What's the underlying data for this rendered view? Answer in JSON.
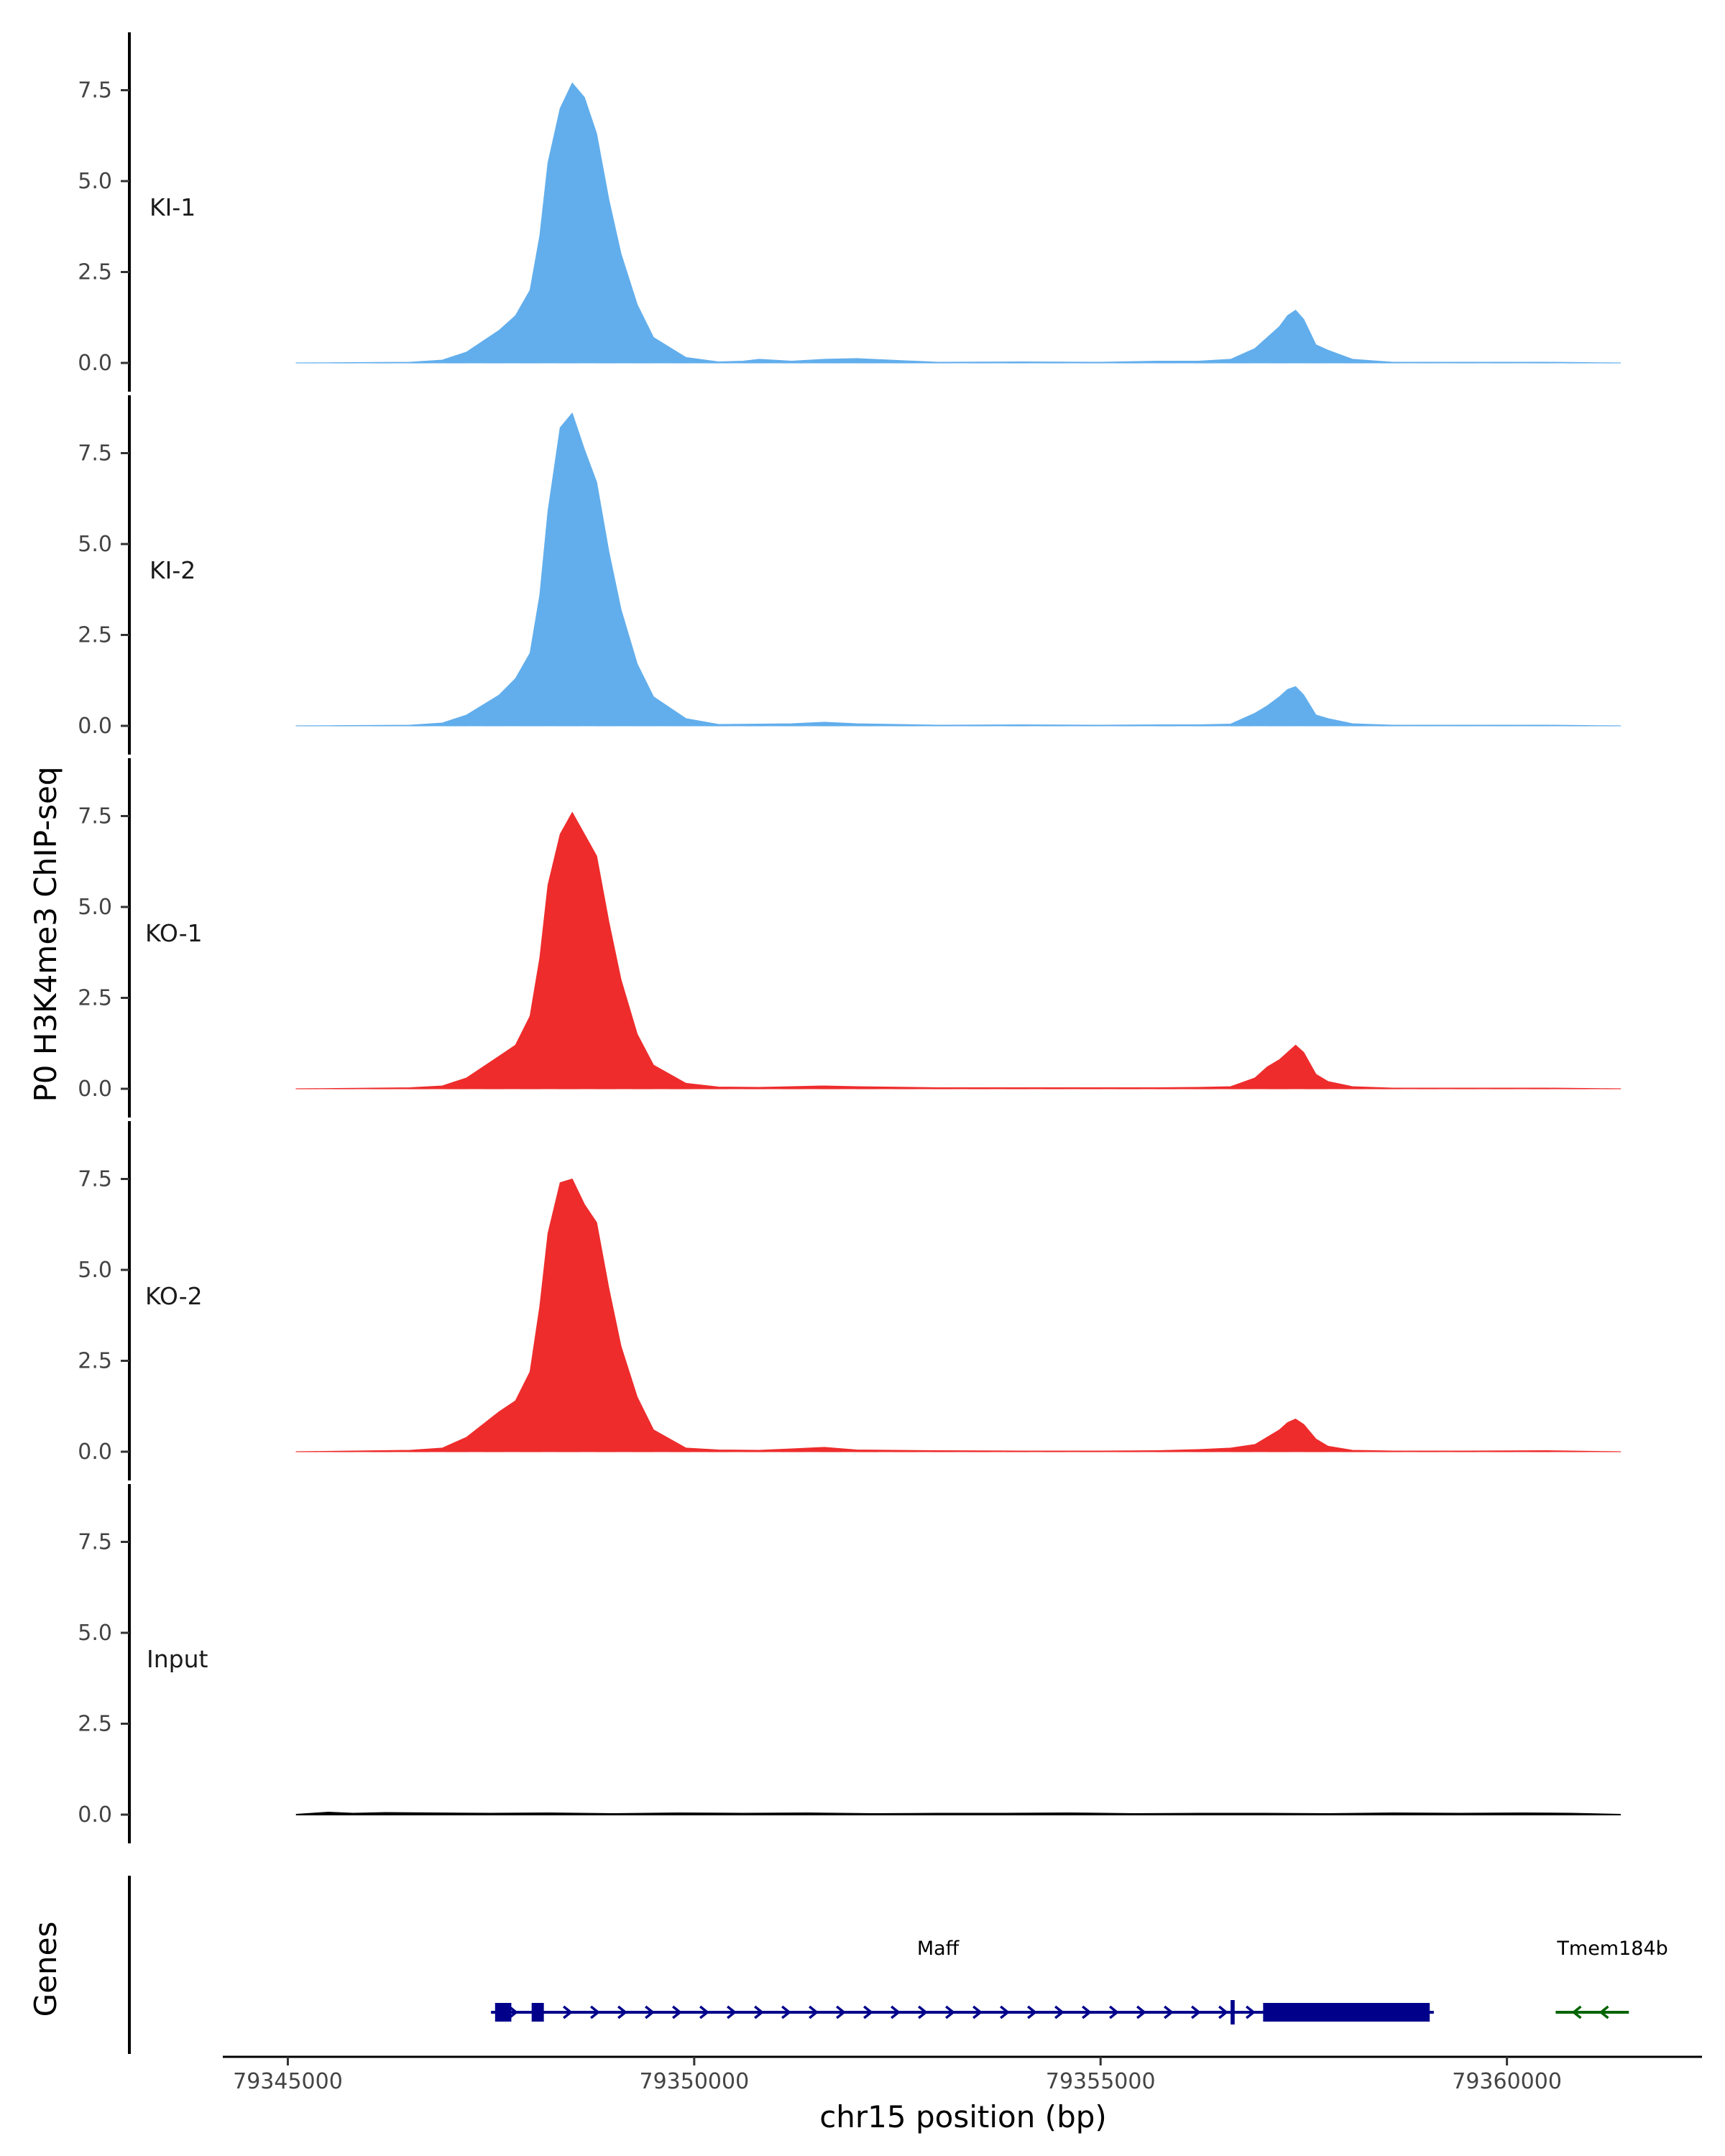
{
  "chart_data": {
    "type": "area",
    "ylabel": "P0 H3K4me3 ChIP-seq",
    "xlabel": "chr15 position (bp)",
    "genes_label": "Genes",
    "xlim": [
      79344200,
      79362400
    ],
    "ylim": [
      0,
      9
    ],
    "y_ticks": [
      0,
      2.5,
      5,
      7.5
    ],
    "y_tick_labels": [
      "0.0",
      "2.5",
      "5.0",
      "7.5"
    ],
    "x_ticks": [
      79345000,
      79350000,
      79355000,
      79360000
    ],
    "x_tick_labels": [
      "79345000",
      "79350000",
      "79355000",
      "79360000"
    ],
    "track_range": [
      79345100,
      79361400
    ],
    "grid": false,
    "colors": {
      "KI": "#62aeec",
      "KO": "#ee2c2c",
      "Input": "#000000",
      "Maff": "#00008b",
      "Tmem184b": "#006400"
    },
    "tracks": [
      {
        "name": "KI-1",
        "color": "#62aeec",
        "label_offset_x": 0,
        "x": [
          79345100,
          79346500,
          79346900,
          79347200,
          79347600,
          79347800,
          79347980,
          79348100,
          79348200,
          79348350,
          79348500,
          79348650,
          79348800,
          79348950,
          79349100,
          79349300,
          79349500,
          79349900,
          79350300,
          79350600,
          79350800,
          79351200,
          79351600,
          79352000,
          79353000,
          79354000,
          79355000,
          79355700,
          79356200,
          79356600,
          79356900,
          79357050,
          79357200,
          79357300,
          79357400,
          79357500,
          79357650,
          79357800,
          79358100,
          79358600,
          79359500,
          79360500,
          79361400
        ],
        "values": [
          0,
          0.02,
          0.08,
          0.3,
          0.9,
          1.3,
          2.0,
          3.5,
          5.5,
          7.0,
          7.7,
          7.3,
          6.3,
          4.5,
          3.0,
          1.6,
          0.7,
          0.15,
          0.03,
          0.05,
          0.1,
          0.05,
          0.1,
          0.12,
          0.02,
          0.03,
          0.02,
          0.05,
          0.05,
          0.1,
          0.4,
          0.7,
          1.0,
          1.3,
          1.45,
          1.2,
          0.5,
          0.35,
          0.1,
          0.02,
          0.02,
          0.02,
          0
        ]
      },
      {
        "name": "KI-2",
        "color": "#62aeec",
        "label_offset_x": 0,
        "x": [
          79345100,
          79346500,
          79346900,
          79347200,
          79347600,
          79347800,
          79347980,
          79348100,
          79348200,
          79348350,
          79348500,
          79348650,
          79348800,
          79348950,
          79349100,
          79349300,
          79349500,
          79349900,
          79350300,
          79350800,
          79351200,
          79351600,
          79352000,
          79353000,
          79354000,
          79355000,
          79355700,
          79356200,
          79356600,
          79356900,
          79357050,
          79357200,
          79357300,
          79357400,
          79357500,
          79357650,
          79357800,
          79358100,
          79358600,
          79359500,
          79360500,
          79361400
        ],
        "values": [
          0,
          0.02,
          0.08,
          0.3,
          0.85,
          1.3,
          2.0,
          3.6,
          5.9,
          8.2,
          8.6,
          7.6,
          6.7,
          4.8,
          3.2,
          1.7,
          0.8,
          0.2,
          0.04,
          0.05,
          0.06,
          0.1,
          0.06,
          0.02,
          0.03,
          0.02,
          0.03,
          0.03,
          0.05,
          0.35,
          0.55,
          0.8,
          1.0,
          1.08,
          0.85,
          0.3,
          0.2,
          0.06,
          0.02,
          0.02,
          0.02,
          0
        ]
      },
      {
        "name": "KO-1",
        "color": "#ee2c2c",
        "label_offset_x": -6,
        "x": [
          79345100,
          79346500,
          79346900,
          79347200,
          79347600,
          79347800,
          79347980,
          79348100,
          79348200,
          79348350,
          79348500,
          79348650,
          79348800,
          79348950,
          79349100,
          79349300,
          79349500,
          79349900,
          79350300,
          79350800,
          79351200,
          79351600,
          79352000,
          79353000,
          79354000,
          79355000,
          79355700,
          79356200,
          79356600,
          79356900,
          79357050,
          79357200,
          79357300,
          79357400,
          79357500,
          79357650,
          79357800,
          79358100,
          79358600,
          79359500,
          79360500,
          79361400
        ],
        "values": [
          0,
          0.03,
          0.08,
          0.3,
          0.9,
          1.2,
          2.0,
          3.6,
          5.6,
          7.0,
          7.6,
          7.0,
          6.4,
          4.6,
          3.0,
          1.5,
          0.65,
          0.15,
          0.05,
          0.04,
          0.06,
          0.08,
          0.06,
          0.03,
          0.03,
          0.03,
          0.03,
          0.04,
          0.06,
          0.3,
          0.6,
          0.8,
          1.0,
          1.2,
          1.0,
          0.4,
          0.2,
          0.06,
          0.02,
          0.02,
          0.02,
          0
        ]
      },
      {
        "name": "KO-2",
        "color": "#ee2c2c",
        "label_offset_x": -6,
        "x": [
          79345100,
          79346500,
          79346900,
          79347200,
          79347600,
          79347800,
          79347980,
          79348100,
          79348200,
          79348350,
          79348500,
          79348650,
          79348800,
          79348950,
          79349100,
          79349300,
          79349500,
          79349900,
          79350300,
          79350800,
          79351200,
          79351600,
          79352000,
          79353000,
          79354000,
          79355000,
          79355700,
          79356200,
          79356600,
          79356900,
          79357050,
          79357200,
          79357300,
          79357400,
          79357500,
          79357650,
          79357800,
          79358100,
          79358600,
          79359500,
          79360500,
          79361400
        ],
        "values": [
          0,
          0.04,
          0.1,
          0.4,
          1.1,
          1.4,
          2.2,
          4.0,
          6.0,
          7.4,
          7.5,
          6.8,
          6.3,
          4.5,
          2.9,
          1.5,
          0.6,
          0.1,
          0.05,
          0.04,
          0.08,
          0.12,
          0.05,
          0.03,
          0.02,
          0.02,
          0.03,
          0.06,
          0.1,
          0.2,
          0.4,
          0.6,
          0.8,
          0.9,
          0.75,
          0.35,
          0.15,
          0.04,
          0.02,
          0.02,
          0.03,
          0
        ]
      },
      {
        "name": "Input",
        "color": "#000000",
        "label_offset_x": -4,
        "x": [
          79345100,
          79345500,
          79345800,
          79346200,
          79346800,
          79347500,
          79348200,
          79349000,
          79349800,
          79350600,
          79351400,
          79352200,
          79353000,
          79353800,
          79354600,
          79355400,
          79356200,
          79357000,
          79357800,
          79358600,
          79359400,
          79360200,
          79360800,
          79361400
        ],
        "values": [
          0,
          0.06,
          0.03,
          0.05,
          0.04,
          0.03,
          0.04,
          0.02,
          0.04,
          0.03,
          0.04,
          0.02,
          0.03,
          0.03,
          0.04,
          0.02,
          0.03,
          0.03,
          0.02,
          0.04,
          0.03,
          0.04,
          0.03,
          0
        ]
      }
    ],
    "genes": [
      {
        "name": "Maff",
        "color": "#00008b",
        "strand": "+",
        "start": 79347500,
        "end": 79359100,
        "label_x": 79353000,
        "exons": [
          [
            79347550,
            79347750,
            "thick"
          ],
          [
            79348000,
            79348150,
            "thick"
          ],
          [
            79356600,
            79356650,
            "thin"
          ],
          [
            79357000,
            79359050,
            "thick"
          ]
        ]
      },
      {
        "name": "Tmem184b",
        "color": "#006400",
        "strand": "-",
        "start": 79360600,
        "end": 79361500,
        "label_x": 79361300,
        "exons": []
      }
    ]
  }
}
